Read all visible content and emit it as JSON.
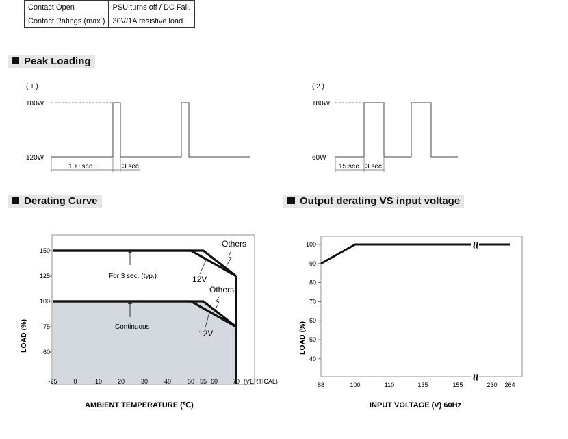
{
  "contact_table": {
    "rows": [
      {
        "label": "Contact Open",
        "value": "PSU turns off / DC Fail."
      },
      {
        "label": "Contact Ratings (max.)",
        "value": "30V/1A resistive load."
      }
    ]
  },
  "peak_loading": {
    "title": "Peak Loading",
    "diagram1": {
      "tag": "( 1 )",
      "high": "180W",
      "low": "120W",
      "t1": "100 sec.",
      "t2": "3 sec."
    },
    "diagram2": {
      "tag": "( 2 )",
      "high": "180W",
      "low": "60W",
      "t1": "15 sec.",
      "t2": "3 sec."
    }
  },
  "derating": {
    "title": "Derating Curve",
    "fill_color": "#d4d9df",
    "chart_data": {
      "type": "line",
      "xlabel": "AMBIENT TEMPERATURE (℃)",
      "ylabel": "LOAD (%)",
      "x_ticks": [
        "-25",
        "0",
        "10",
        "20",
        "30",
        "40",
        "50",
        "55",
        "60",
        "70"
      ],
      "x_suffix": "(VERTICAL)",
      "y_ticks": [
        "60",
        "75",
        "100",
        "125",
        "150"
      ],
      "grid": false,
      "series": [
        {
          "name": "Others",
          "x": [
            -25,
            55,
            70
          ],
          "y": [
            150,
            150,
            125
          ]
        },
        {
          "name": "12V",
          "x": [
            -25,
            50,
            70
          ],
          "y": [
            150,
            150,
            125
          ]
        },
        {
          "name": "Others",
          "x": [
            -25,
            55,
            70
          ],
          "y": [
            100,
            100,
            75
          ]
        },
        {
          "name": "12V",
          "x": [
            -25,
            50,
            70
          ],
          "y": [
            100,
            100,
            75
          ]
        }
      ],
      "annotations": [
        "For 3 sec. (typ.)",
        "Continuous"
      ]
    }
  },
  "input_derating": {
    "title": "Output derating VS input voltage",
    "chart_data": {
      "type": "line",
      "xlabel": "INPUT VOLTAGE (V) 60Hz",
      "ylabel": "LOAD (%)",
      "x_ticks": [
        "88",
        "100",
        "110",
        "135",
        "155",
        "230",
        "264"
      ],
      "y_ticks": [
        "40",
        "50",
        "60",
        "70",
        "80",
        "90",
        "100"
      ],
      "grid": false,
      "axis_break_symbol": "≈",
      "series": [
        {
          "x": [
            88,
            100,
            264
          ],
          "y": [
            90,
            100,
            100
          ]
        }
      ]
    }
  }
}
